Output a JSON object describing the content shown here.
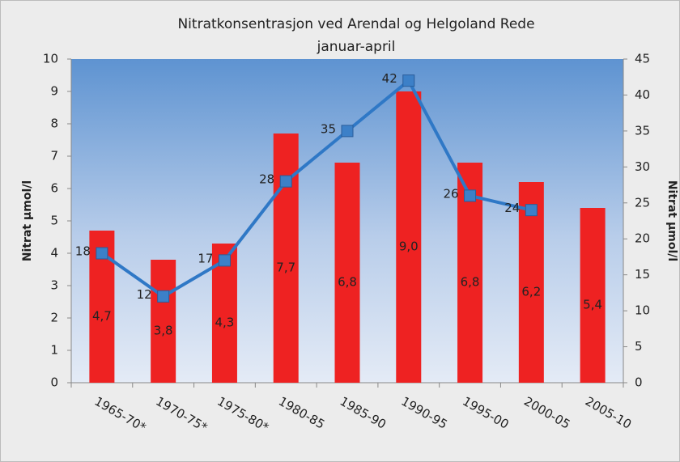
{
  "chart_data": {
    "type": "bar",
    "title": "Nitratkonsentrasjon ved Arendal og Helgoland Rede",
    "subtitle": "januar-april",
    "ylabel": "Nitrat µmol/l",
    "y2label": "Nitrat µmol/l",
    "categories": [
      "1965-70*",
      "1970-75*",
      "1975-80*",
      "1980-85",
      "1985-90",
      "1990-95",
      "1995-00",
      "2000-05",
      "2005-10"
    ],
    "series": [
      {
        "type": "bar",
        "color": "#ee2222",
        "values": [
          4.7,
          3.8,
          4.3,
          7.7,
          6.8,
          9.0,
          6.8,
          6.2,
          5.4
        ],
        "value_labels": [
          "4,7",
          "3,8",
          "4,3",
          "7,7",
          "6,8",
          "9,0",
          "6,8",
          "6,2",
          "5,4"
        ]
      },
      {
        "type": "line",
        "axis": "y2",
        "color": "#2f78c6",
        "values": [
          18,
          12,
          17,
          28,
          35,
          42,
          26,
          24,
          null
        ]
      }
    ],
    "ylim": [
      0,
      10
    ],
    "yticks": [
      0,
      1,
      2,
      3,
      4,
      5,
      6,
      7,
      8,
      9,
      10
    ],
    "y2lim": [
      0,
      45
    ],
    "y2ticks": [
      0,
      5,
      10,
      15,
      20,
      25,
      30,
      35,
      40,
      45
    ]
  }
}
